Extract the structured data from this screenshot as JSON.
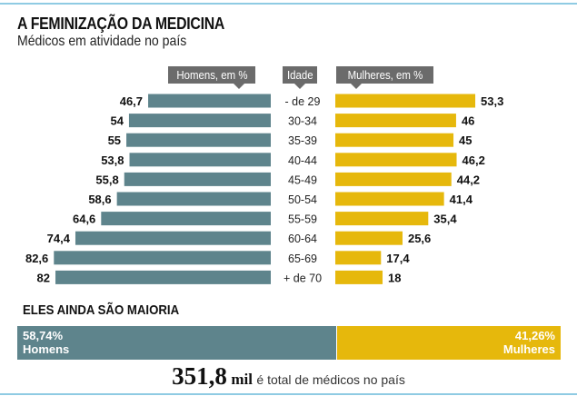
{
  "title": "A FEMINIZAÇÃO DA MEDICINA",
  "subtitle": "Médicos em atividade no país",
  "colors": {
    "men": "#5e848c",
    "women": "#e6b80c",
    "header": "#6b6b6b",
    "rule": "#8fcbe3"
  },
  "chart_data": [
    {
      "type": "bar",
      "orientation": "horizontal-pyramid",
      "headers": {
        "men": "Homens, em %",
        "age": "Idade",
        "women": "Mulheres, em %"
      },
      "categories": [
        "- de 29",
        "30-34",
        "35-39",
        "40-44",
        "45-49",
        "50-54",
        "55-59",
        "60-64",
        "65-69",
        "+ de 70"
      ],
      "series": [
        {
          "name": "Homens, em %",
          "values": [
            46.7,
            54,
            55,
            53.8,
            55.8,
            58.6,
            64.6,
            74.4,
            82.6,
            82
          ],
          "labels": [
            "46,7",
            "54",
            "55",
            "53,8",
            "55,8",
            "58,6",
            "64,6",
            "74,4",
            "82,6",
            "82"
          ]
        },
        {
          "name": "Mulheres, em %",
          "values": [
            53.3,
            46,
            45,
            46.2,
            44.2,
            41.4,
            35.4,
            25.6,
            17.4,
            18
          ],
          "labels": [
            "53,3",
            "46",
            "45",
            "46,2",
            "44,2",
            "41,4",
            "35,4",
            "25,6",
            "17,4",
            "18"
          ]
        }
      ]
    },
    {
      "type": "bar",
      "orientation": "stacked-100",
      "title": "ELES AINDA SÃO MAIORIA",
      "series": [
        {
          "name": "Homens",
          "value": 58.74,
          "label": "58,74%"
        },
        {
          "name": "Mulheres",
          "value": 41.26,
          "label": "41,26%"
        }
      ]
    }
  ],
  "total": {
    "number": "351,8",
    "unit": "mil",
    "text": "é total de médicos no país"
  }
}
